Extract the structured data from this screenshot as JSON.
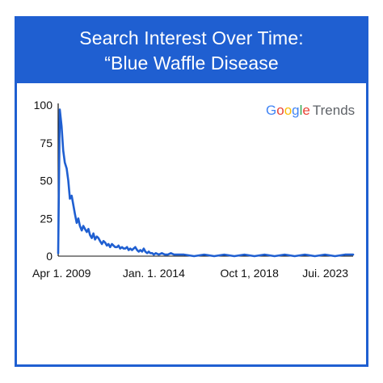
{
  "header": {
    "title_line1": "Search Interest Over Time:",
    "title_line2": "“Blue Waffle Disease"
  },
  "logo": {
    "letters": [
      "G",
      "o",
      "o",
      "g",
      "l",
      "e"
    ],
    "letter_colors": [
      "#4285F4",
      "#EA4335",
      "#FBBC05",
      "#4285F4",
      "#34A853",
      "#EA4335"
    ],
    "suffix": "Trends"
  },
  "chart_data": {
    "type": "line",
    "title": "Search Interest Over Time: “Blue Waffle Disease",
    "xlabel": "",
    "ylabel": "",
    "xlim": [
      2009.25,
      2023.9
    ],
    "ylim": [
      0,
      100
    ],
    "y_ticks": [
      0,
      25,
      50,
      75,
      100
    ],
    "x_ticks": [
      {
        "value": 2009.25,
        "label": "Apr 1. 2009"
      },
      {
        "value": 2014.0,
        "label": "Jan. 1. 2014"
      },
      {
        "value": 2018.75,
        "label": "Oct 1, 2018"
      },
      {
        "value": 2023.5,
        "label": "Jui. 2023"
      }
    ],
    "grid": false,
    "line_color": "#1f5fd1",
    "series": [
      {
        "x": [
          2009.25,
          2009.33,
          2009.42,
          2009.5,
          2009.58,
          2009.67,
          2009.75,
          2009.83,
          2009.92,
          2010.0,
          2010.08,
          2010.17,
          2010.25,
          2010.33,
          2010.42,
          2010.5,
          2010.58,
          2010.67,
          2010.75,
          2010.83,
          2010.92,
          2011.0,
          2011.08,
          2011.17,
          2011.25,
          2011.33,
          2011.42,
          2011.5,
          2011.58,
          2011.67,
          2011.75,
          2011.83,
          2011.92,
          2012.0,
          2012.08,
          2012.17,
          2012.25,
          2012.33,
          2012.42,
          2012.5,
          2012.58,
          2012.67,
          2012.75,
          2012.83,
          2012.92,
          2013.0,
          2013.08,
          2013.17,
          2013.25,
          2013.33,
          2013.42,
          2013.5,
          2013.58,
          2013.67,
          2013.75,
          2013.83,
          2013.92,
          2014.0,
          2014.1,
          2014.25,
          2014.4,
          2014.55,
          2014.7,
          2014.85,
          2015.0,
          2015.5,
          2016.0,
          2016.5,
          2017.0,
          2017.5,
          2018.0,
          2018.5,
          2019.0,
          2019.5,
          2020.0,
          2020.5,
          2021.0,
          2021.5,
          2022.0,
          2022.5,
          2023.0,
          2023.5,
          2023.9
        ],
        "values": [
          2,
          97,
          86,
          70,
          62,
          58,
          50,
          38,
          40,
          34,
          28,
          22,
          25,
          20,
          17,
          20,
          18,
          16,
          18,
          14,
          12,
          15,
          11,
          13,
          12,
          10,
          8,
          10,
          9,
          7,
          8,
          6,
          8,
          7,
          6,
          6,
          7,
          5,
          6,
          5,
          5,
          6,
          4,
          5,
          4,
          5,
          6,
          4,
          3,
          4,
          3,
          5,
          3,
          2,
          3,
          2,
          2,
          1,
          2,
          1,
          2,
          1,
          1,
          2,
          1,
          1,
          0,
          1,
          0,
          1,
          0,
          1,
          0,
          1,
          0,
          1,
          0,
          1,
          0,
          1,
          0,
          1,
          1
        ]
      }
    ]
  }
}
